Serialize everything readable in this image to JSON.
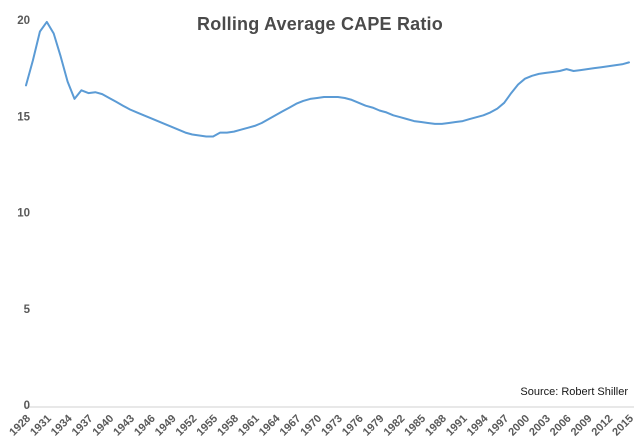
{
  "annotations": {
    "source_label": "Source: Robert Shiller"
  },
  "chart_data": {
    "type": "line",
    "title": "Rolling Average CAPE Ratio",
    "xlabel": "",
    "ylabel": "",
    "x_range": [
      1928,
      2015
    ],
    "x_tick_labels": [
      "1928",
      "1931",
      "1934",
      "1937",
      "1940",
      "1943",
      "1946",
      "1949",
      "1952",
      "1955",
      "1958",
      "1961",
      "1964",
      "1967",
      "1970",
      "1973",
      "1976",
      "1979",
      "1982",
      "1985",
      "1988",
      "1991",
      "1994",
      "1997",
      "2000",
      "2003",
      "2006",
      "2009",
      "2012",
      "2015"
    ],
    "y_ticks": [
      0,
      5,
      10,
      15,
      20
    ],
    "y_tick_labels": [
      "0",
      "5",
      "10",
      "15",
      "20"
    ],
    "ylim": [
      0,
      20
    ],
    "grid": false,
    "legend": "none",
    "line_color": "#5B9BD5",
    "axis_line_color": "#D9D9D9",
    "tick_label_color": "#595959",
    "title_color": "#4A4A4A",
    "series": [
      {
        "name": "Rolling Average CAPE Ratio",
        "x_start": 1928,
        "x_step": 1,
        "values": [
          16.6,
          17.9,
          19.4,
          19.9,
          19.3,
          18.1,
          16.8,
          15.9,
          16.35,
          16.2,
          16.25,
          16.15,
          15.95,
          15.75,
          15.55,
          15.35,
          15.2,
          15.05,
          14.9,
          14.75,
          14.6,
          14.45,
          14.3,
          14.15,
          14.05,
          14.0,
          13.95,
          13.95,
          14.15,
          14.15,
          14.2,
          14.3,
          14.4,
          14.5,
          14.65,
          14.85,
          15.05,
          15.25,
          15.45,
          15.65,
          15.8,
          15.9,
          15.95,
          16.0,
          16.0,
          16.0,
          15.95,
          15.85,
          15.7,
          15.55,
          15.45,
          15.3,
          15.2,
          15.05,
          14.95,
          14.85,
          14.75,
          14.7,
          14.65,
          14.6,
          14.6,
          14.65,
          14.7,
          14.75,
          14.85,
          14.95,
          15.05,
          15.2,
          15.4,
          15.7,
          16.2,
          16.65,
          16.95,
          17.1,
          17.2,
          17.25,
          17.3,
          17.35,
          17.45,
          17.35,
          17.4,
          17.45,
          17.5,
          17.55,
          17.6,
          17.65,
          17.7,
          17.8
        ]
      }
    ]
  }
}
